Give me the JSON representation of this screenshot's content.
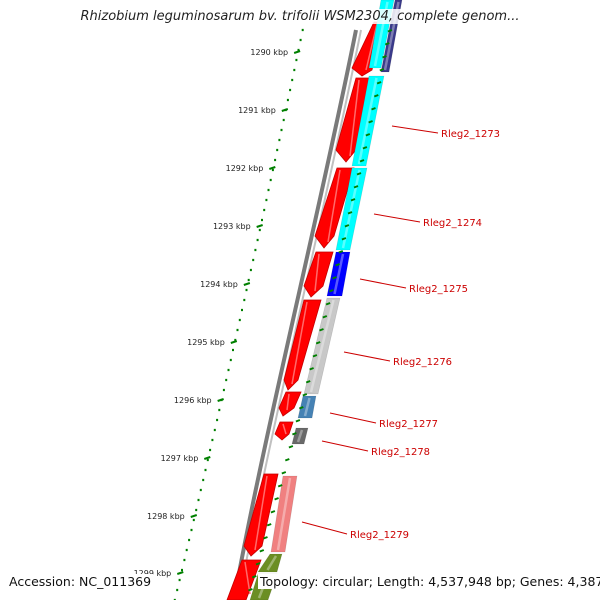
{
  "title": "Rhizobium leguminosarum bv. trifolii WSM2304, complete genom...",
  "footer": {
    "accession": "Accession: NC_011369",
    "topology": "Topology: circular; Length: 4,537,948 bp; Genes: 4,387"
  },
  "ruler": {
    "ticks": [
      "1290 kbp",
      "1291 kbp",
      "1292 kbp",
      "1293 kbp",
      "1294 kbp",
      "1295 kbp",
      "1296 kbp",
      "1297 kbp",
      "1298 kbp",
      "1299 kbp"
    ]
  },
  "genes": [
    {
      "label": "Rleg2_1273",
      "color": "#00ffff"
    },
    {
      "label": "Rleg2_1274",
      "color": "#00ffff"
    },
    {
      "label": "Rleg2_1275",
      "color": "#0000ff"
    },
    {
      "label": "Rleg2_1276",
      "color": "#c8c8c8"
    },
    {
      "label": "Rleg2_1277",
      "color": "#4682b4"
    },
    {
      "label": "Rleg2_1278",
      "color": "#696969"
    },
    {
      "label": "Rleg2_1279",
      "color": "#f08080"
    }
  ],
  "colors": {
    "forward_strand": "#ff0000",
    "backbone": "#808080",
    "ruler": "#008000",
    "label": "#cc0000",
    "top_cog": "#3a3a8a",
    "bottom_cog": "#6b8e23"
  }
}
